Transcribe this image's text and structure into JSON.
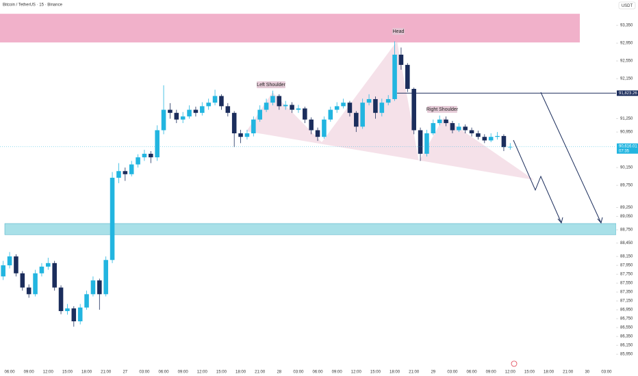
{
  "chart_data": {
    "type": "candlestick",
    "title": "Bitcoin / TetherUS · 15 · Binance",
    "currency": "USDT",
    "categories": [
      null,
      "06:00",
      null,
      null,
      "09:00",
      null,
      null,
      "12:00",
      null,
      null,
      "15:00",
      null,
      null,
      "18:00",
      null,
      null,
      "21:00",
      null,
      null,
      "27",
      null,
      null,
      "03:00",
      null,
      null,
      "06:00",
      null,
      null,
      "09:00",
      null,
      null,
      "12:00",
      null,
      null,
      "15:00",
      null,
      null,
      "18:00",
      null,
      null,
      "21:00",
      null,
      null,
      "28",
      null,
      null,
      "03:00",
      null,
      null,
      "06:00",
      null,
      null,
      "09:00",
      null,
      null,
      "12:00",
      null,
      null,
      "15:00",
      null,
      null,
      "18:00",
      null,
      null,
      "21:00",
      null,
      null,
      "29",
      null,
      null,
      "03:00",
      null,
      null,
      "06:00",
      null,
      null,
      "09:00",
      null,
      null,
      "12:00",
      null,
      null,
      "15:00",
      null,
      null,
      "18:00",
      null,
      null,
      "21:00",
      null,
      null,
      "30",
      null,
      null,
      "03:00",
      null
    ],
    "open": [
      87700,
      87950,
      88150,
      87770,
      87450,
      87300,
      87770,
      87920,
      88000,
      87450,
      86920,
      86980,
      86690,
      87000,
      87300,
      87610,
      87300,
      88070,
      89920,
      90070,
      90000,
      90220,
      90380,
      90460,
      90380,
      90990,
      91450,
      91380,
      91230,
      91300,
      91450,
      91380,
      91530,
      91610,
      91760,
      91530,
      91380,
      90920,
      90840,
      90920,
      91230,
      91450,
      91610,
      91760,
      91530,
      91560,
      91450,
      91480,
      91230,
      90990,
      90840,
      91230,
      91450,
      91530,
      91610,
      91380,
      91070,
      91610,
      91690,
      91380,
      91610,
      91690,
      92690,
      92460,
      91920,
      90990,
      90460,
      90920,
      91150,
      91230,
      91150,
      90990,
      91070,
      90990,
      90920,
      90840,
      90760,
      90840,
      90860,
      90610,
      null,
      null,
      null,
      null,
      null,
      null,
      null,
      null,
      null,
      null,
      null,
      null,
      null,
      null,
      null,
      null
    ],
    "high": [
      88050,
      88250,
      88200,
      87820,
      87520,
      87850,
      88000,
      88120,
      88050,
      87500,
      87080,
      87030,
      87080,
      87380,
      87700,
      87650,
      88150,
      90050,
      90250,
      90150,
      90300,
      90450,
      90550,
      90520,
      91100,
      92000,
      91600,
      91450,
      91400,
      91550,
      91520,
      91620,
      91700,
      91900,
      91800,
      91600,
      91420,
      91000,
      91000,
      91300,
      91550,
      91700,
      91880,
      91800,
      91650,
      91620,
      91560,
      91520,
      91280,
      91050,
      91300,
      91520,
      91620,
      91700,
      91650,
      91420,
      91700,
      91800,
      91750,
      91700,
      91780,
      92990,
      92850,
      92500,
      91950,
      91050,
      91000,
      91230,
      91320,
      91300,
      91200,
      91150,
      91120,
      91050,
      90980,
      90900,
      90920,
      90950,
      90900,
      90700,
      null,
      null,
      null,
      null,
      null,
      null,
      null,
      null,
      null,
      null,
      null,
      null,
      null,
      null,
      null,
      null
    ],
    "low": [
      87620,
      87880,
      87700,
      87380,
      87220,
      87250,
      87700,
      87850,
      87380,
      86850,
      86840,
      86570,
      86620,
      86950,
      87250,
      86950,
      87250,
      88000,
      89800,
      89850,
      89950,
      90150,
      90300,
      90250,
      90300,
      90900,
      91250,
      91150,
      91150,
      91250,
      91300,
      91320,
      91450,
      91550,
      91450,
      91300,
      90610,
      90700,
      90780,
      90850,
      91180,
      91400,
      91550,
      91450,
      91450,
      91380,
      91380,
      91150,
      90900,
      90750,
      90800,
      91180,
      91380,
      91480,
      91300,
      90950,
      91020,
      91550,
      91250,
      91300,
      91550,
      91650,
      92350,
      91850,
      90900,
      90300,
      90400,
      90880,
      91100,
      91080,
      90920,
      90950,
      90920,
      90850,
      90780,
      90700,
      90720,
      90780,
      90520,
      90550,
      null,
      null,
      null,
      null,
      null,
      null,
      null,
      null,
      null,
      null,
      null,
      null,
      null,
      null,
      null,
      null
    ],
    "close": [
      87950,
      88150,
      87770,
      87450,
      87300,
      87770,
      87920,
      88000,
      87450,
      86920,
      86980,
      86690,
      87000,
      87300,
      87610,
      87300,
      88070,
      89920,
      90070,
      90000,
      90220,
      90380,
      90460,
      90380,
      90990,
      91450,
      91380,
      91230,
      91300,
      91450,
      91380,
      91530,
      91610,
      91760,
      91530,
      91380,
      90920,
      90840,
      90920,
      91230,
      91450,
      91610,
      91760,
      91530,
      91560,
      91450,
      91480,
      91230,
      90990,
      90840,
      91230,
      91450,
      91530,
      91610,
      91380,
      91070,
      91610,
      91690,
      91380,
      91610,
      91690,
      92690,
      92460,
      91920,
      90990,
      90460,
      90920,
      91150,
      91230,
      91150,
      90990,
      91070,
      90990,
      90920,
      90840,
      90760,
      90840,
      90860,
      90610,
      90616.01,
      null,
      null,
      null,
      null,
      null,
      null,
      null,
      null,
      null,
      null,
      null,
      null,
      null,
      null,
      null,
      null
    ],
    "up_color": "#22b5e0",
    "down_color": "#1b2d5c",
    "ylim": [
      85690,
      93920
    ],
    "yticks": [
      {
        "value": 93350,
        "label": "93,350"
      },
      {
        "value": 92950,
        "label": "92,950"
      },
      {
        "value": 92550,
        "label": "92,550"
      },
      {
        "value": 92150,
        "label": "92,150"
      },
      {
        "value": 91250,
        "label": "91,250"
      },
      {
        "value": 90950,
        "label": "90,950"
      },
      {
        "value": 90150,
        "label": "90,150"
      },
      {
        "value": 89750,
        "label": "89,750"
      },
      {
        "value": 89250,
        "label": "89,250"
      },
      {
        "value": 89050,
        "label": "89,050"
      },
      {
        "value": 88750,
        "label": "88,750"
      },
      {
        "value": 88450,
        "label": "88,450"
      },
      {
        "value": 88150,
        "label": "88,150"
      },
      {
        "value": 87950,
        "label": "87,950"
      },
      {
        "value": 87750,
        "label": "87,750"
      },
      {
        "value": 87550,
        "label": "87,550"
      },
      {
        "value": 87350,
        "label": "87,350"
      },
      {
        "value": 87150,
        "label": "87,150"
      },
      {
        "value": 86950,
        "label": "86,950"
      },
      {
        "value": 86750,
        "label": "86,750"
      },
      {
        "value": 86550,
        "label": "86,550"
      },
      {
        "value": 86350,
        "label": "86,350"
      },
      {
        "value": 86150,
        "label": "86,150"
      },
      {
        "value": 85950,
        "label": "85,950"
      }
    ],
    "zones": [
      {
        "range": [
          92965,
          93610
        ],
        "color": "#f0a8c4"
      },
      {
        "range": [
          88640,
          88890
        ],
        "color": "#9fdde6"
      }
    ],
    "price_line": {
      "value": 91823.26,
      "label": "91,823.26"
    },
    "last_price": {
      "value": 90616.01,
      "label": "90,616.01",
      "countdown": "07:35"
    },
    "annotations": [
      "Head",
      "Left Shoulder",
      "Right Shoulder"
    ]
  }
}
